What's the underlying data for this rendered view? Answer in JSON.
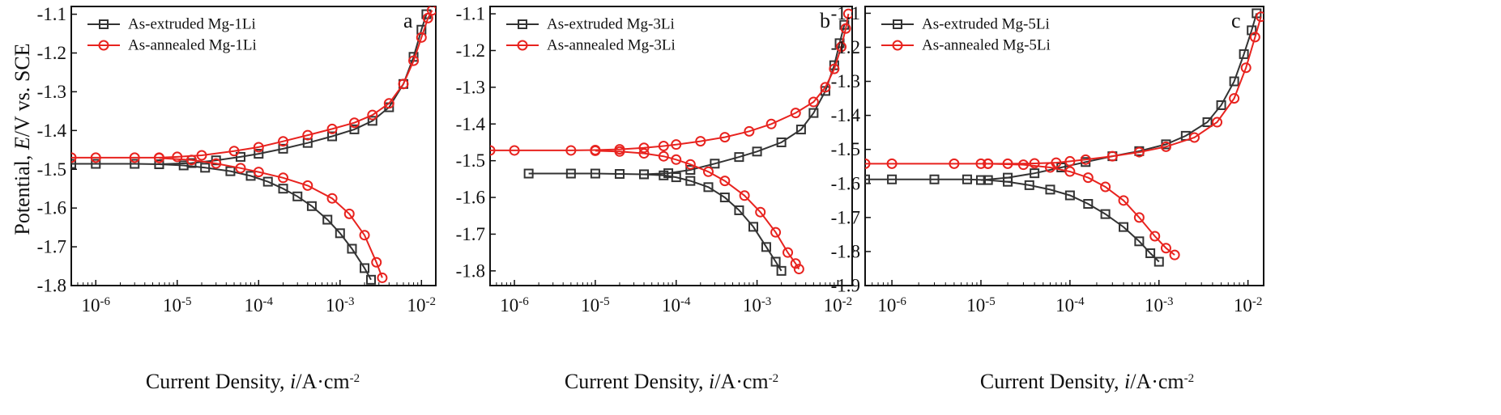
{
  "figure": {
    "ylabel_prefix": "Potential, ",
    "ylabel_var": "E",
    "ylabel_suffix": "/V vs. SCE",
    "xlabel_prefix": "Current Density, ",
    "xlabel_var": "i",
    "xlabel_suffix": "/A·cm",
    "xlabel_exp": "-2"
  },
  "colors": {
    "extruded": "#333333",
    "annealed": "#e8231f"
  },
  "chart_data": [
    {
      "type": "line",
      "panel": "a",
      "xscale": "log",
      "xlim": [
        5e-07,
        0.015
      ],
      "ylim": [
        -1.8,
        -1.08
      ],
      "xticks": [
        1e-06,
        1e-05,
        0.0001,
        0.001,
        0.01
      ],
      "yticks": [
        -1.8,
        -1.7,
        -1.6,
        -1.5,
        -1.4,
        -1.3,
        -1.2,
        -1.1
      ],
      "series": [
        {
          "name": "As-extruded Mg-1Li",
          "marker": "square",
          "x": [
            5e-07,
            1e-06,
            3e-06,
            6e-06,
            1.2e-05,
            2.2e-05,
            4.5e-05,
            8e-05,
            0.00013,
            0.0002,
            0.0003,
            0.00045,
            0.0007,
            0.001,
            0.0014,
            0.002,
            0.0024
          ],
          "y": [
            -1.486,
            -1.486,
            -1.486,
            -1.487,
            -1.49,
            -1.496,
            -1.505,
            -1.517,
            -1.532,
            -1.55,
            -1.57,
            -1.595,
            -1.63,
            -1.665,
            -1.705,
            -1.755,
            -1.785
          ]
        },
        {
          "name": "As-extruded Mg-1Li",
          "marker": "square",
          "x": [
            6e-06,
            1.5e-05,
            3e-05,
            6e-05,
            0.0001,
            0.0002,
            0.0004,
            0.0008,
            0.0015,
            0.0025,
            0.004,
            0.006,
            0.008,
            0.01,
            0.0115
          ],
          "y": [
            -1.487,
            -1.484,
            -1.477,
            -1.468,
            -1.46,
            -1.447,
            -1.432,
            -1.415,
            -1.397,
            -1.375,
            -1.34,
            -1.28,
            -1.21,
            -1.14,
            -1.1
          ]
        },
        {
          "name": "As-annealed Mg-1Li",
          "marker": "circle",
          "x": [
            5e-07,
            1e-06,
            3e-06,
            6e-06,
            1e-05,
            2e-05,
            5e-05,
            0.0001,
            0.0002,
            0.0004,
            0.0008,
            0.0015,
            0.0025,
            0.004,
            0.006,
            0.008,
            0.01,
            0.012,
            0.0135
          ],
          "y": [
            -1.47,
            -1.47,
            -1.47,
            -1.47,
            -1.468,
            -1.464,
            -1.453,
            -1.443,
            -1.428,
            -1.412,
            -1.396,
            -1.38,
            -1.36,
            -1.33,
            -1.28,
            -1.22,
            -1.16,
            -1.11,
            -1.09
          ]
        },
        {
          "name": "As-annealed Mg-1Li",
          "marker": "circle",
          "x": [
            6e-06,
            1.5e-05,
            3e-05,
            6e-05,
            0.0001,
            0.0002,
            0.0004,
            0.0008,
            0.0013,
            0.002,
            0.0028,
            0.0033
          ],
          "y": [
            -1.471,
            -1.476,
            -1.485,
            -1.497,
            -1.507,
            -1.522,
            -1.542,
            -1.575,
            -1.615,
            -1.67,
            -1.74,
            -1.78
          ]
        }
      ]
    },
    {
      "type": "line",
      "panel": "b",
      "xscale": "log",
      "xlim": [
        5e-07,
        0.015
      ],
      "ylim": [
        -1.84,
        -1.08
      ],
      "xticks": [
        1e-06,
        1e-05,
        0.0001,
        0.001,
        0.01
      ],
      "yticks": [
        -1.8,
        -1.7,
        -1.6,
        -1.5,
        -1.4,
        -1.3,
        -1.2,
        -1.1
      ],
      "series": [
        {
          "name": "As-extruded Mg-3Li",
          "marker": "square",
          "x": [
            1.5e-06,
            5e-06,
            1e-05,
            2e-05,
            4e-05,
            7e-05,
            0.0001,
            0.00015,
            0.00025,
            0.0004,
            0.0006,
            0.0009,
            0.0013,
            0.0017,
            0.002
          ],
          "y": [
            -1.535,
            -1.535,
            -1.535,
            -1.536,
            -1.537,
            -1.54,
            -1.545,
            -1.555,
            -1.572,
            -1.6,
            -1.635,
            -1.68,
            -1.735,
            -1.775,
            -1.8
          ]
        },
        {
          "name": "As-extruded Mg-3Li",
          "marker": "square",
          "x": [
            4e-05,
            8e-05,
            0.00015,
            0.0003,
            0.0006,
            0.001,
            0.002,
            0.0035,
            0.005,
            0.007,
            0.009,
            0.0105,
            0.012
          ],
          "y": [
            -1.537,
            -1.534,
            -1.525,
            -1.508,
            -1.49,
            -1.475,
            -1.45,
            -1.415,
            -1.37,
            -1.31,
            -1.24,
            -1.18,
            -1.13
          ]
        },
        {
          "name": "As-annealed Mg-3Li",
          "marker": "circle",
          "x": [
            5e-07,
            1e-06,
            5e-06,
            1e-05,
            2e-05,
            4e-05,
            7e-05,
            0.0001,
            0.0002,
            0.0004,
            0.0008,
            0.0015,
            0.003,
            0.005,
            0.007,
            0.009,
            0.011,
            0.0125,
            0.0135
          ],
          "y": [
            -1.472,
            -1.472,
            -1.472,
            -1.471,
            -1.469,
            -1.465,
            -1.46,
            -1.456,
            -1.447,
            -1.436,
            -1.42,
            -1.4,
            -1.37,
            -1.34,
            -1.3,
            -1.25,
            -1.19,
            -1.14,
            -1.1
          ]
        },
        {
          "name": "As-annealed Mg-3Li",
          "marker": "circle",
          "x": [
            1e-05,
            2e-05,
            4e-05,
            7e-05,
            0.0001,
            0.00015,
            0.00025,
            0.0004,
            0.0007,
            0.0011,
            0.0017,
            0.0024,
            0.003,
            0.0033
          ],
          "y": [
            -1.473,
            -1.475,
            -1.48,
            -1.488,
            -1.497,
            -1.51,
            -1.53,
            -1.555,
            -1.595,
            -1.64,
            -1.695,
            -1.75,
            -1.78,
            -1.795
          ]
        }
      ]
    },
    {
      "type": "line",
      "panel": "c",
      "xscale": "log",
      "xlim": [
        5e-07,
        0.015
      ],
      "ylim": [
        -1.9,
        -1.08
      ],
      "xticks": [
        1e-06,
        1e-05,
        0.0001,
        0.001,
        0.01
      ],
      "yticks": [
        -1.9,
        -1.8,
        -1.7,
        -1.6,
        -1.5,
        -1.4,
        -1.3,
        -1.2,
        -1.1
      ],
      "series": [
        {
          "name": "As-extruded Mg-5Li",
          "marker": "square",
          "x": [
            5e-07,
            1e-06,
            3e-06,
            7e-06,
            1.2e-05,
            2e-05,
            3.5e-05,
            6e-05,
            0.0001,
            0.00016,
            0.00025,
            0.0004,
            0.0006,
            0.0008,
            0.001
          ],
          "y": [
            -1.588,
            -1.588,
            -1.588,
            -1.588,
            -1.59,
            -1.595,
            -1.605,
            -1.618,
            -1.635,
            -1.66,
            -1.69,
            -1.728,
            -1.77,
            -1.805,
            -1.83
          ]
        },
        {
          "name": "As-extruded Mg-5Li",
          "marker": "square",
          "x": [
            1e-05,
            2e-05,
            4e-05,
            8e-05,
            0.00015,
            0.0003,
            0.0006,
            0.0012,
            0.002,
            0.0035,
            0.005,
            0.007,
            0.009,
            0.011,
            0.0125
          ],
          "y": [
            -1.59,
            -1.583,
            -1.57,
            -1.553,
            -1.537,
            -1.52,
            -1.505,
            -1.485,
            -1.46,
            -1.42,
            -1.37,
            -1.3,
            -1.22,
            -1.15,
            -1.1
          ]
        },
        {
          "name": "As-annealed Mg-5Li",
          "marker": "circle",
          "x": [
            5e-07,
            1e-06,
            5e-06,
            1e-05,
            1.2e-05,
            2e-05,
            4e-05,
            7e-05,
            0.0001,
            0.00015,
            0.0003,
            0.0006,
            0.0012,
            0.0025,
            0.0045,
            0.007,
            0.0095,
            0.012,
            0.014
          ],
          "y": [
            -1.542,
            -1.542,
            -1.542,
            -1.542,
            -1.542,
            -1.542,
            -1.541,
            -1.539,
            -1.535,
            -1.53,
            -1.52,
            -1.508,
            -1.492,
            -1.465,
            -1.42,
            -1.35,
            -1.26,
            -1.17,
            -1.11
          ]
        },
        {
          "name": "As-annealed Mg-5Li",
          "marker": "circle",
          "x": [
            1.2e-05,
            3e-05,
            6e-05,
            0.0001,
            0.00016,
            0.00025,
            0.0004,
            0.0006,
            0.0009,
            0.0012,
            0.0015
          ],
          "y": [
            -1.542,
            -1.545,
            -1.553,
            -1.565,
            -1.583,
            -1.61,
            -1.65,
            -1.7,
            -1.755,
            -1.79,
            -1.81
          ]
        }
      ]
    }
  ]
}
